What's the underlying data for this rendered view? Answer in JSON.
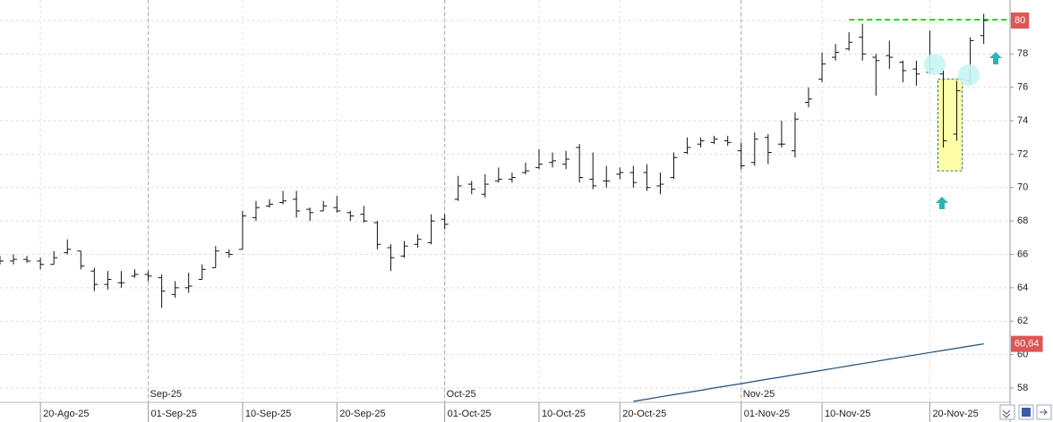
{
  "chart_data": {
    "type": "ohlc",
    "categories": [
      null,
      null,
      null,
      "20-Ago-25",
      null,
      null,
      null,
      null,
      null,
      null,
      null,
      "01-Sep-25",
      null,
      null,
      null,
      null,
      null,
      null,
      "10-Sep-25",
      null,
      null,
      null,
      null,
      null,
      null,
      "20-Sep-25",
      null,
      null,
      null,
      null,
      null,
      null,
      null,
      "01-Oct-25",
      null,
      null,
      null,
      null,
      null,
      null,
      "10-Oct-25",
      null,
      null,
      null,
      null,
      null,
      "20-Oct-25",
      null,
      null,
      null,
      null,
      null,
      null,
      null,
      null,
      "01-Nov-25",
      null,
      null,
      null,
      null,
      null,
      "10-Nov-25",
      null,
      null,
      null,
      null,
      null,
      null,
      null,
      "20-Nov-25",
      null,
      null,
      null,
      null
    ],
    "month_labels": [
      null,
      null,
      null,
      null,
      null,
      null,
      null,
      null,
      null,
      null,
      null,
      "Sep-25",
      null,
      null,
      null,
      null,
      null,
      null,
      null,
      null,
      null,
      null,
      null,
      null,
      null,
      null,
      null,
      null,
      null,
      null,
      null,
      null,
      null,
      "Oct-25",
      null,
      null,
      null,
      null,
      null,
      null,
      null,
      null,
      null,
      null,
      null,
      null,
      null,
      null,
      null,
      null,
      null,
      null,
      null,
      null,
      null,
      "Nov-25",
      null,
      null,
      null,
      null,
      null,
      null,
      null,
      null,
      null,
      null,
      null,
      null,
      null,
      null,
      null,
      null,
      null,
      null
    ],
    "open": [
      65.6,
      65.6,
      65.7,
      65.6,
      65.4,
      66.1,
      66.2,
      65.0,
      64.2,
      64.3,
      64.7,
      64.8,
      64.6,
      63.6,
      64.0,
      64.5,
      65.2,
      66.1,
      66.3,
      68.2,
      68.9,
      69.1,
      69.3,
      68.7,
      68.6,
      68.8,
      68.5,
      68.4,
      67.9,
      66.4,
      65.9,
      66.6,
      66.7,
      68.1,
      69.3,
      70.2,
      69.6,
      70.4,
      70.5,
      70.9,
      71.2,
      71.5,
      71.4,
      72.4,
      70.5,
      70.4,
      70.8,
      70.9,
      70.9,
      70.1,
      70.6,
      72.1,
      72.6,
      72.7,
      72.8,
      72.2,
      71.5,
      73.0,
      72.6,
      72.2,
      75.1,
      76.5,
      77.8,
      78.3,
      79.0,
      77.8,
      77.9,
      77.5,
      77.1,
      76.9,
      76.8,
      73.2,
      76.4,
      79.1
    ],
    "high": [
      65.9,
      66.0,
      65.9,
      65.8,
      66.2,
      66.9,
      66.2,
      65.2,
      65.0,
      65.0,
      65.1,
      65.0,
      64.8,
      64.4,
      64.9,
      65.4,
      66.5,
      66.3,
      68.6,
      69.2,
      69.3,
      69.8,
      69.8,
      68.8,
      69.2,
      69.5,
      68.6,
      68.9,
      68.0,
      66.6,
      66.8,
      67.2,
      68.4,
      68.4,
      70.7,
      70.4,
      70.8,
      71.2,
      70.9,
      71.5,
      72.3,
      72.1,
      72.2,
      72.6,
      72.1,
      71.3,
      71.2,
      71.3,
      71.4,
      70.9,
      72.1,
      73.0,
      73.0,
      73.1,
      73.1,
      72.7,
      73.3,
      73.2,
      74.0,
      74.5,
      76.0,
      78.1,
      78.6,
      79.3,
      79.8,
      78.0,
      78.8,
      77.6,
      77.6,
      79.4,
      77.1,
      76.4,
      79.0,
      80.4
    ],
    "low": [
      65.4,
      65.4,
      65.5,
      65.1,
      65.4,
      66.0,
      65.1,
      63.8,
      63.9,
      64.0,
      64.6,
      64.4,
      62.8,
      63.4,
      63.7,
      64.5,
      65.2,
      65.8,
      66.3,
      68.0,
      68.8,
      69.0,
      68.2,
      68.0,
      68.6,
      68.5,
      68.0,
      67.9,
      66.3,
      65.0,
      65.8,
      66.4,
      66.6,
      67.5,
      69.2,
      69.6,
      69.4,
      70.3,
      70.3,
      70.8,
      71.1,
      71.2,
      71.1,
      70.3,
      69.9,
      70.0,
      70.5,
      70.0,
      69.8,
      69.6,
      70.5,
      72.0,
      72.4,
      72.6,
      72.5,
      71.1,
      71.3,
      71.4,
      72.4,
      71.8,
      74.8,
      76.3,
      77.6,
      78.2,
      77.6,
      75.5,
      77.1,
      76.3,
      76.1,
      76.8,
      72.4,
      72.8,
      76.2,
      78.6
    ],
    "close": [
      65.6,
      65.7,
      65.6,
      65.4,
      65.8,
      66.3,
      65.3,
      64.2,
      64.5,
      64.3,
      64.8,
      64.7,
      63.8,
      64.0,
      64.1,
      65.1,
      66.2,
      66.0,
      68.3,
      68.8,
      69.0,
      69.2,
      68.6,
      68.5,
      68.9,
      68.6,
      68.3,
      68.0,
      66.6,
      65.8,
      66.5,
      66.9,
      68.0,
      67.8,
      70.1,
      69.9,
      70.2,
      70.5,
      70.6,
      71.0,
      71.4,
      71.6,
      71.7,
      70.6,
      70.1,
      70.4,
      70.9,
      70.3,
      70.0,
      70.2,
      71.8,
      72.4,
      72.8,
      72.9,
      72.7,
      71.3,
      72.9,
      72.1,
      72.6,
      74.1,
      75.3,
      77.4,
      78.1,
      78.7,
      78.0,
      77.6,
      77.8,
      77.0,
      76.8,
      77.1,
      72.8,
      75.8,
      78.8,
      80.0
    ],
    "close_labels": [
      null,
      null,
      null,
      null,
      null,
      null,
      null,
      null,
      null,
      null,
      null,
      null,
      null,
      null,
      null,
      null,
      null,
      null,
      null,
      null,
      null,
      null,
      null,
      null,
      null,
      null,
      null,
      null,
      null,
      null,
      null,
      null,
      null,
      null,
      null,
      null,
      null,
      null,
      null,
      null,
      null,
      null,
      null,
      null,
      null,
      null,
      null,
      null,
      null,
      null,
      null,
      null,
      null,
      null,
      null,
      null,
      null,
      null,
      null,
      null,
      null,
      null,
      null,
      null,
      null,
      null,
      null,
      null,
      null,
      null,
      null,
      null,
      null,
      "80"
    ],
    "ma": {
      "color": "#1f4e79",
      "values": [
        null,
        null,
        null,
        null,
        null,
        null,
        null,
        null,
        null,
        null,
        null,
        null,
        null,
        null,
        null,
        null,
        null,
        null,
        null,
        null,
        null,
        null,
        null,
        null,
        null,
        null,
        null,
        null,
        null,
        null,
        null,
        null,
        null,
        null,
        null,
        null,
        null,
        null,
        null,
        null,
        null,
        null,
        null,
        null,
        null,
        null,
        null,
        57.2,
        57.33,
        57.47,
        57.6,
        57.73,
        57.86,
        58.0,
        58.13,
        58.26,
        58.4,
        58.53,
        58.66,
        58.8,
        58.93,
        59.06,
        59.19,
        59.33,
        59.46,
        59.59,
        59.73,
        59.86,
        59.99,
        60.12,
        60.25,
        60.38,
        60.51,
        60.64
      ],
      "value_labels": [
        null,
        null,
        null,
        null,
        null,
        null,
        null,
        null,
        null,
        null,
        null,
        null,
        null,
        null,
        null,
        null,
        null,
        null,
        null,
        null,
        null,
        null,
        null,
        null,
        null,
        null,
        null,
        null,
        null,
        null,
        null,
        null,
        null,
        null,
        null,
        null,
        null,
        null,
        null,
        null,
        null,
        null,
        null,
        null,
        null,
        null,
        null,
        null,
        null,
        null,
        null,
        null,
        null,
        null,
        null,
        null,
        null,
        null,
        null,
        null,
        null,
        null,
        null,
        null,
        null,
        null,
        null,
        null,
        null,
        null,
        null,
        null,
        null,
        "60,64"
      ]
    },
    "resistance": 80.05,
    "highlight": {
      "low": 71.0,
      "high": 76.5
    },
    "ylim": [
      57.14,
      81.23
    ],
    "yticks": [
      58,
      60,
      62,
      64,
      66,
      68,
      70,
      72,
      74,
      76,
      78,
      80
    ],
    "grid": true
  }
}
